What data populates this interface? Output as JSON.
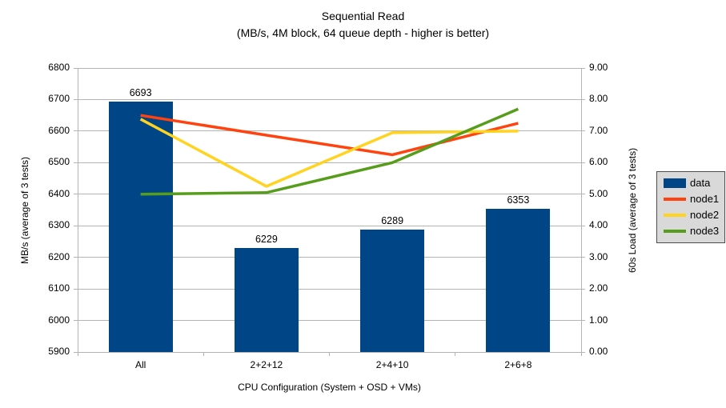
{
  "title": "Sequential Read",
  "subtitle": "(MB/s, 4M block, 64 queue depth - higher is better)",
  "chart_data": {
    "type": "bar+line combo",
    "categories": [
      "All",
      "2+2+12",
      "2+4+10",
      "2+6+8"
    ],
    "bars": {
      "name": "data",
      "color": "#004586",
      "axis": "left",
      "values": [
        6693,
        6229,
        6289,
        6353
      ]
    },
    "series": [
      {
        "name": "node1",
        "color": "#FF420E",
        "axis": "right",
        "values": [
          7.5,
          6.87,
          6.25,
          7.25
        ]
      },
      {
        "name": "node2",
        "color": "#FFD320",
        "axis": "right",
        "values": [
          7.38,
          5.25,
          6.95,
          7.0
        ]
      },
      {
        "name": "node3",
        "color": "#579D1C",
        "axis": "right",
        "values": [
          5.0,
          5.05,
          6.0,
          7.7
        ]
      }
    ],
    "xlabel": "CPU Configuration (System + OSD + VMs)",
    "ylabel_left": "MB/s (average of 3 tests)",
    "ylabel_right": "60s Load (average of 3 tests)",
    "y_left": {
      "min": 5900,
      "max": 6800,
      "step": 100
    },
    "y_right": {
      "min": 0,
      "max": 9,
      "step": 1,
      "decimals": 2
    },
    "grid": true,
    "legend_position": "right"
  },
  "legend": {
    "items": [
      {
        "label": "data",
        "color": "#004586",
        "type": "bar"
      },
      {
        "label": "node1",
        "color": "#FF420E",
        "type": "line"
      },
      {
        "label": "node2",
        "color": "#FFD320",
        "type": "line"
      },
      {
        "label": "node3",
        "color": "#579D1C",
        "type": "line"
      }
    ]
  },
  "colors": {
    "background": "#ffffff",
    "grid": "#b3b3b3",
    "axis": "#b3b3b3",
    "text": "#000000",
    "legend_bg": "#d9d9d9",
    "legend_border": "#4d4d4d"
  }
}
